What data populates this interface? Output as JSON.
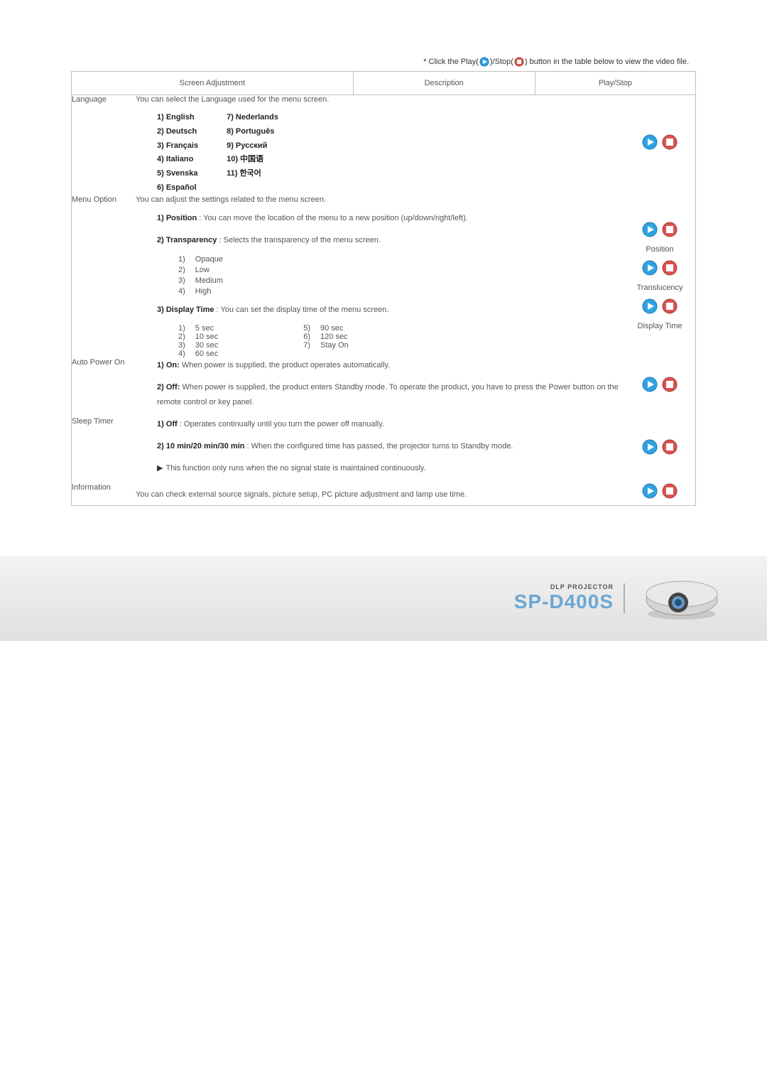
{
  "toptext_prefix": "* Click the Play(",
  "toptext_mid": ")/Stop(",
  "toptext_suffix": ") button in the table below to view the video file.",
  "header": {
    "col1": "Screen Adjustment",
    "col2": "Description",
    "col3": "Play/Stop"
  },
  "rows": {
    "language": {
      "label": "Language",
      "intro": "You can select the Language used for the menu screen.",
      "col1": [
        "1) English",
        "2) Deutsch",
        "3) Français",
        "4) Italiano",
        "5) Svenska",
        "6) Español"
      ],
      "col2": [
        "7) Nederlands",
        "8) Português",
        "9) Русский",
        "10) 中国语",
        "11) 한국어"
      ]
    },
    "menuoption": {
      "label": "Menu Option",
      "intro": "You can adjust the settings related to the menu screen.",
      "pos_bold": "1) Position",
      "pos_rest": " : You can move the location of the menu to a new position (up/down/right/left).",
      "trans_bold": "2) Transparency",
      "trans_rest": " : Selects the transparency of the menu screen.",
      "trans_opts": [
        [
          "1)",
          "Opaque"
        ],
        [
          "2)",
          "Low"
        ],
        [
          "3)",
          "Medium"
        ],
        [
          "4)",
          "High"
        ]
      ],
      "disp_bold": "3) Display Time",
      "disp_rest": " : You can set the display time of the menu screen.",
      "disp_optsA": [
        [
          "1)",
          "5 sec"
        ],
        [
          "2)",
          "10 sec"
        ],
        [
          "3)",
          "30 sec"
        ],
        [
          "4)",
          "60 sec"
        ]
      ],
      "disp_optsB": [
        [
          "5)",
          "90 sec"
        ],
        [
          "6)",
          "120 sec"
        ],
        [
          "7)",
          "Stay On"
        ]
      ],
      "ps_position": "Position",
      "ps_trans": "Translucency",
      "ps_disp": "Display Time"
    },
    "autopower": {
      "label": "Auto Power On",
      "l1a": "1) On:",
      "l1b": " When power is supplied, the product operates automatically.",
      "l2a": "2) Off:",
      "l2b": " When power is supplied, the product enters Standby mode. To operate the product, you have to press the Power button on the remote control or key panel."
    },
    "sleep": {
      "label": "Sleep Timer",
      "l1a": "1) Off",
      "l1b": " : Operates continually until you turn the power off manually.",
      "l2a": "2) 10 min/20 min/30 min",
      "l2b": " : When the configured time has passed, the projector turns to Standby mode.",
      "note": "This function only runs when the no signal state is maintained continuously."
    },
    "info": {
      "label": "Information",
      "text": "You can check external source signals, picture setup, PC picture adjustment and lamp use time."
    }
  },
  "footer": {
    "small": "DLP PROJECTOR",
    "big": "SP-D400S"
  },
  "colors": {
    "play_fill": "#2fa3e0",
    "play_stroke": "#1879b3",
    "stop_fill": "#d9534f",
    "stop_stroke": "#a83c38"
  }
}
